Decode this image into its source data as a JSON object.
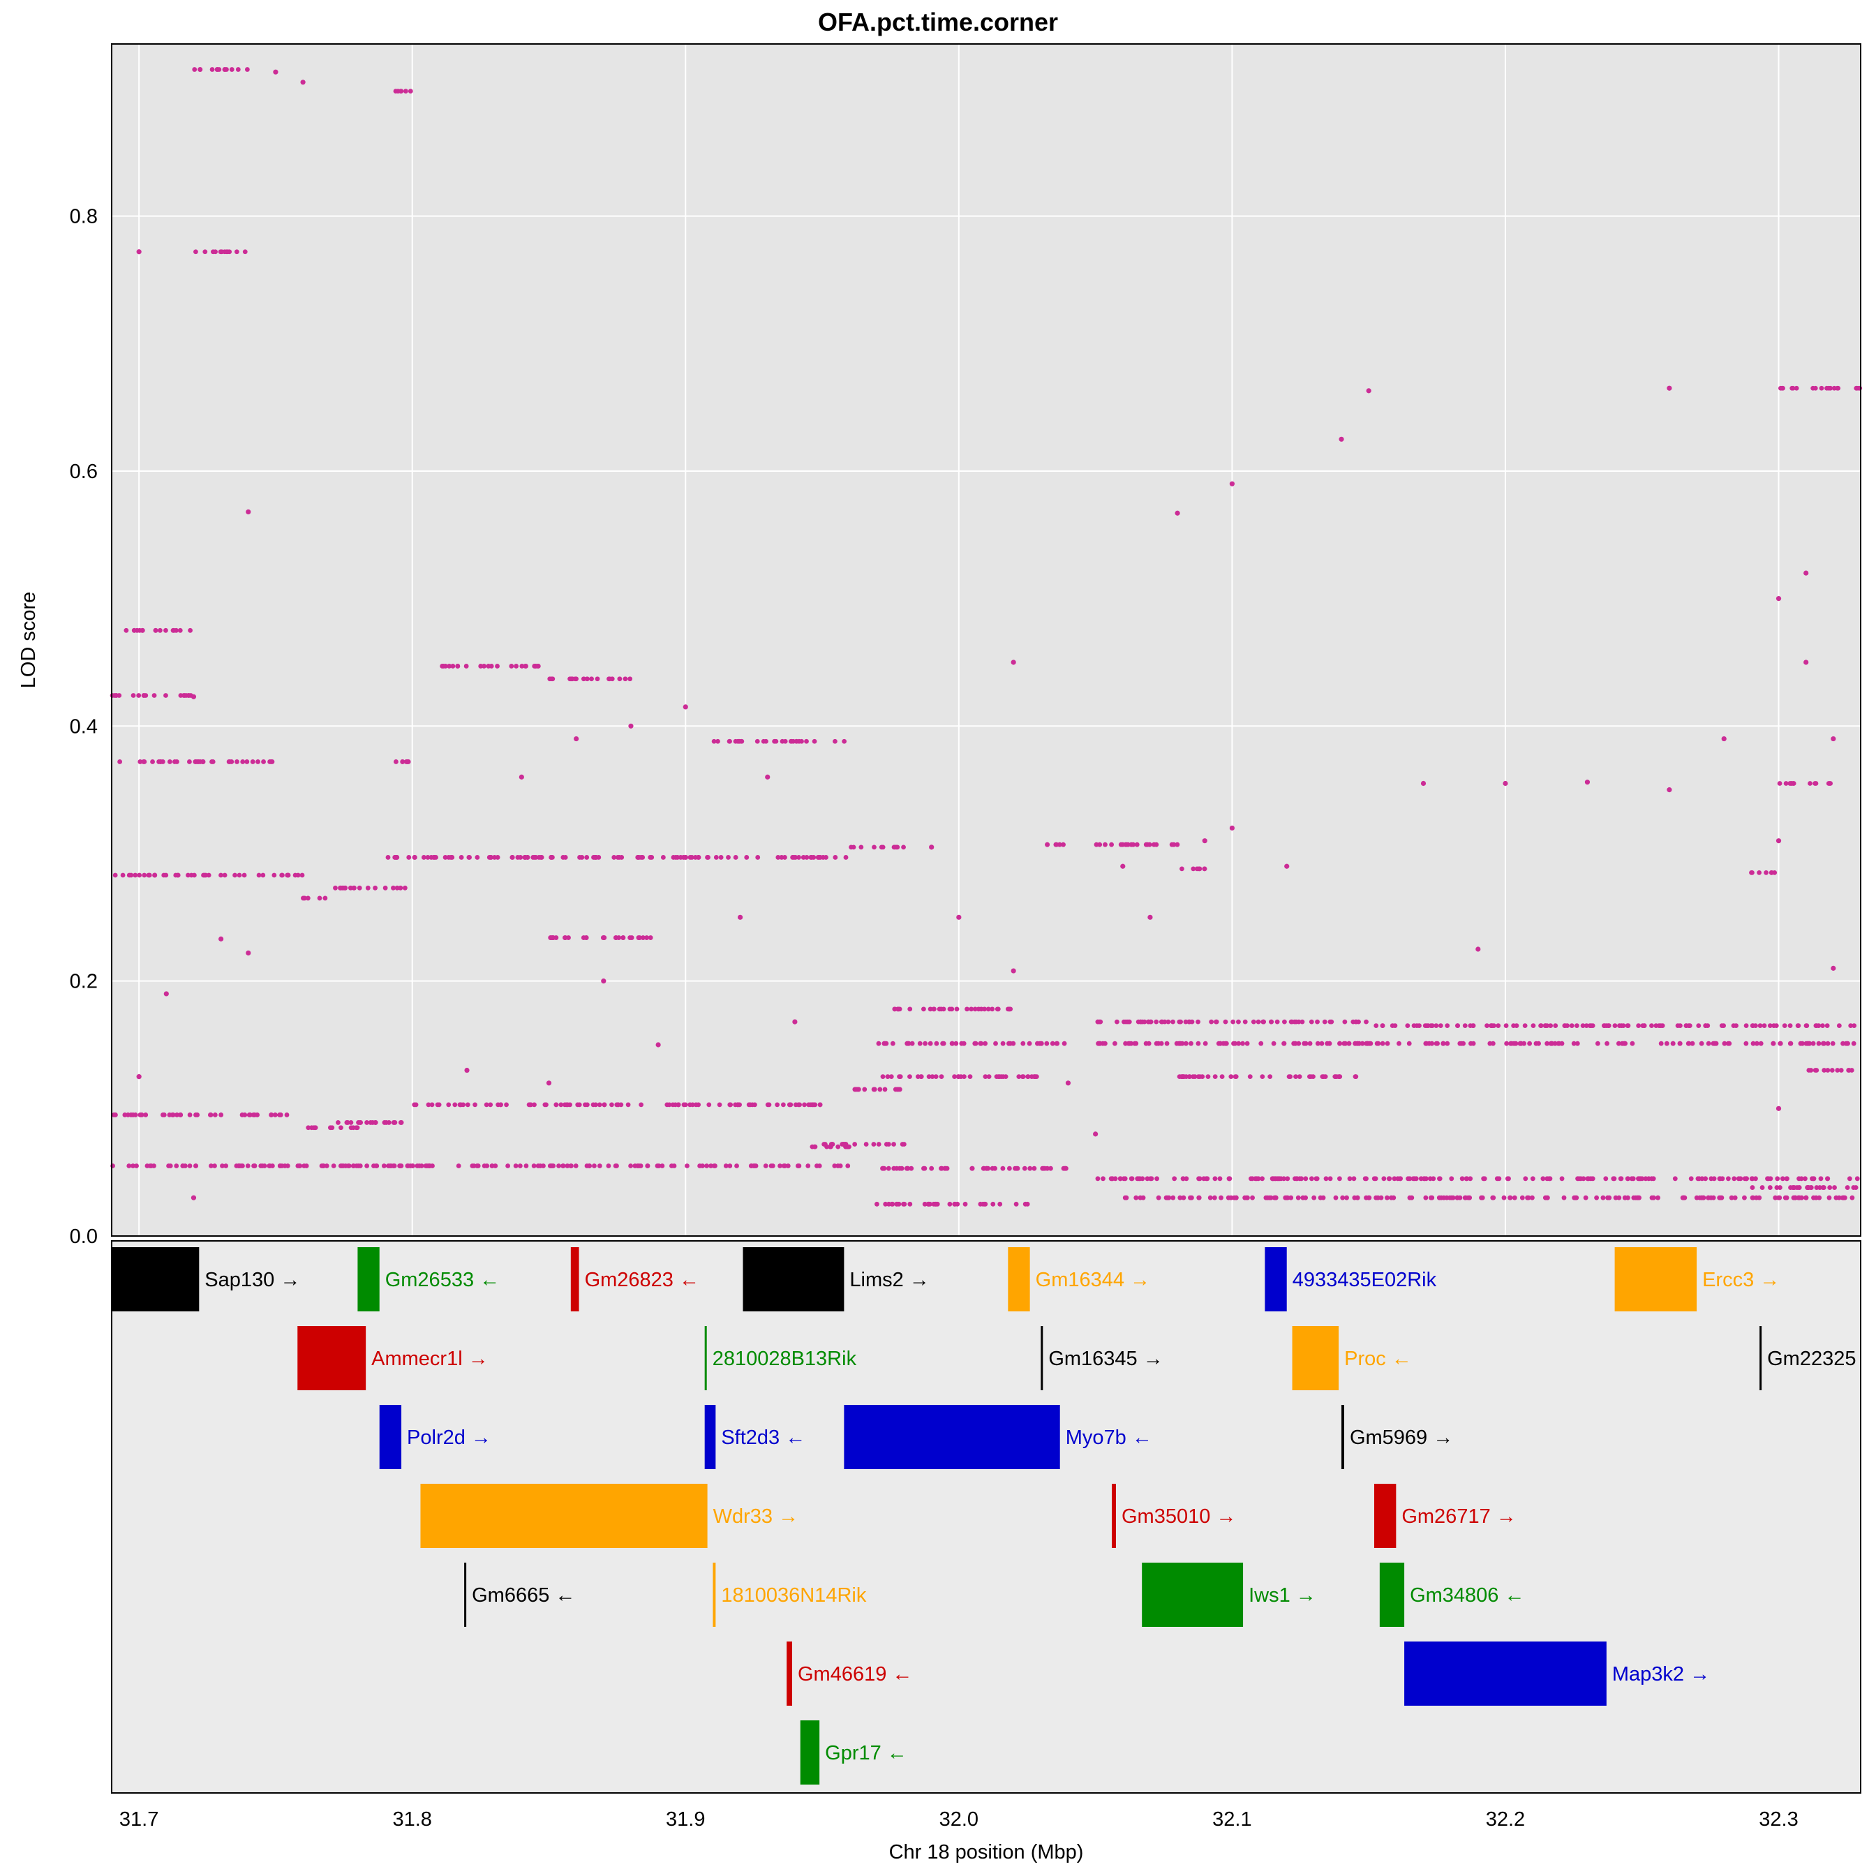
{
  "chart_data": {
    "type": "scatter",
    "title": "OFA.pct.time.corner",
    "xlabel": "Chr 18 position (Mbp)",
    "ylabel": "LOD score",
    "xlim": [
      31.69,
      32.33
    ],
    "ylim": [
      0,
      0.935
    ],
    "xticks": [
      31.7,
      31.8,
      31.9,
      32.0,
      32.1,
      32.2,
      32.3
    ],
    "xtick_labels": [
      "31.7",
      "31.8",
      "31.9",
      "32.0",
      "32.1",
      "32.2",
      "32.3"
    ],
    "yticks": [
      0,
      0.2,
      0.4,
      0.6,
      0.8
    ],
    "ytick_labels": [
      "0.0",
      "0.2",
      "0.4",
      "0.6",
      "0.8"
    ],
    "grid": true,
    "point_color": "#CC2C96",
    "series_bands": [
      {
        "x": [
          31.69,
          31.96
        ],
        "y": 0.055
      },
      {
        "x": [
          31.69,
          31.76
        ],
        "y": 0.095
      },
      {
        "x": [
          31.76,
          31.78
        ],
        "y": 0.085
      },
      {
        "x": [
          31.77,
          31.8
        ],
        "y": 0.089
      },
      {
        "x": [
          31.8,
          31.95
        ],
        "y": 0.103
      },
      {
        "x": [
          31.96,
          31.98
        ],
        "y": 0.115
      },
      {
        "x": [
          31.94,
          31.96
        ],
        "y": 0.07
      },
      {
        "x": [
          31.95,
          31.98
        ],
        "y": 0.072
      },
      {
        "x": [
          31.69,
          31.76
        ],
        "y": 0.283
      },
      {
        "x": [
          31.76,
          31.77
        ],
        "y": 0.265
      },
      {
        "x": [
          31.77,
          31.8
        ],
        "y": 0.273
      },
      {
        "x": [
          31.79,
          31.96
        ],
        "y": 0.297
      },
      {
        "x": [
          31.96,
          31.98
        ],
        "y": 0.305
      },
      {
        "x": [
          31.69,
          31.75
        ],
        "y": 0.372
      },
      {
        "x": [
          31.69,
          31.72
        ],
        "y": 0.424
      },
      {
        "x": [
          31.69,
          31.72
        ],
        "y": 0.475
      },
      {
        "x": [
          31.72,
          31.74
        ],
        "y": 0.915
      },
      {
        "x": [
          31.72,
          31.74
        ],
        "y": 0.772
      },
      {
        "x": [
          31.81,
          31.85
        ],
        "y": 0.447
      },
      {
        "x": [
          31.85,
          31.88
        ],
        "y": 0.437
      },
      {
        "x": [
          31.85,
          31.89
        ],
        "y": 0.234
      },
      {
        "x": [
          31.91,
          31.96
        ],
        "y": 0.388
      },
      {
        "x": [
          31.79,
          31.8
        ],
        "y": 0.898
      },
      {
        "x": [
          31.79,
          31.8
        ],
        "y": 0.372
      },
      {
        "x": [
          31.97,
          32.04
        ],
        "y": 0.151
      },
      {
        "x": [
          32.05,
          32.33
        ],
        "y": 0.151
      },
      {
        "x": [
          31.97,
          32.0
        ],
        "y": 0.178
      },
      {
        "x": [
          32.0,
          32.02
        ],
        "y": 0.178
      },
      {
        "x": [
          31.97,
          32.03
        ],
        "y": 0.125
      },
      {
        "x": [
          32.08,
          32.15
        ],
        "y": 0.125
      },
      {
        "x": [
          32.05,
          32.15
        ],
        "y": 0.168
      },
      {
        "x": [
          32.15,
          32.33
        ],
        "y": 0.165
      },
      {
        "x": [
          31.97,
          32.04
        ],
        "y": 0.053
      },
      {
        "x": [
          31.97,
          32.03
        ],
        "y": 0.025
      },
      {
        "x": [
          32.05,
          32.33
        ],
        "y": 0.045
      },
      {
        "x": [
          32.06,
          32.33
        ],
        "y": 0.03
      },
      {
        "x": [
          32.29,
          32.33
        ],
        "y": 0.038
      },
      {
        "x": [
          32.03,
          32.04
        ],
        "y": 0.307
      },
      {
        "x": [
          32.05,
          32.08
        ],
        "y": 0.307
      },
      {
        "x": [
          32.08,
          32.09
        ],
        "y": 0.288
      },
      {
        "x": [
          32.3,
          32.33
        ],
        "y": 0.665
      },
      {
        "x": [
          32.3,
          32.32
        ],
        "y": 0.355
      },
      {
        "x": [
          32.29,
          32.3
        ],
        "y": 0.285
      },
      {
        "x": [
          32.31,
          32.33
        ],
        "y": 0.13
      }
    ],
    "series_points": [
      [
        31.72,
        0.423
      ],
      [
        31.7,
        0.772
      ],
      [
        31.75,
        0.913
      ],
      [
        31.76,
        0.905
      ],
      [
        31.74,
        0.568
      ],
      [
        31.73,
        0.233
      ],
      [
        31.74,
        0.222
      ],
      [
        31.71,
        0.19
      ],
      [
        31.7,
        0.125
      ],
      [
        31.72,
        0.03
      ],
      [
        31.84,
        0.36
      ],
      [
        31.82,
        0.13
      ],
      [
        31.86,
        0.39
      ],
      [
        31.87,
        0.2
      ],
      [
        31.85,
        0.12
      ],
      [
        31.88,
        0.4
      ],
      [
        31.9,
        0.415
      ],
      [
        31.89,
        0.15
      ],
      [
        31.92,
        0.25
      ],
      [
        31.93,
        0.36
      ],
      [
        31.94,
        0.168
      ],
      [
        31.99,
        0.305
      ],
      [
        32.02,
        0.45
      ],
      [
        32.0,
        0.25
      ],
      [
        32.02,
        0.208
      ],
      [
        32.04,
        0.12
      ],
      [
        32.08,
        0.567
      ],
      [
        32.1,
        0.59
      ],
      [
        32.14,
        0.625
      ],
      [
        32.15,
        0.663
      ],
      [
        32.26,
        0.665
      ],
      [
        32.17,
        0.355
      ],
      [
        32.2,
        0.355
      ],
      [
        32.23,
        0.356
      ],
      [
        32.26,
        0.35
      ],
      [
        32.28,
        0.39
      ],
      [
        32.19,
        0.225
      ],
      [
        32.1,
        0.32
      ],
      [
        32.09,
        0.31
      ],
      [
        32.12,
        0.29
      ],
      [
        32.31,
        0.52
      ],
      [
        32.3,
        0.5
      ],
      [
        32.31,
        0.45
      ],
      [
        32.32,
        0.39
      ],
      [
        32.32,
        0.21
      ],
      [
        32.3,
        0.31
      ],
      [
        32.3,
        0.1
      ],
      [
        32.07,
        0.25
      ],
      [
        32.06,
        0.29
      ],
      [
        32.05,
        0.08
      ]
    ],
    "gene_track": {
      "genes": [
        {
          "name": "Sap130",
          "label": "Sap130 →",
          "start": 31.69,
          "end": 31.722,
          "row": 0,
          "color": "#000000"
        },
        {
          "name": "Gm26533",
          "label": "Gm26533 ←",
          "start": 31.78,
          "end": 31.788,
          "row": 0,
          "color": "#008B00"
        },
        {
          "name": "Gm26823",
          "label": "Gm26823 ←",
          "start": 31.858,
          "end": 31.861,
          "row": 0,
          "color": "#CD0000"
        },
        {
          "name": "Lims2",
          "label": "Lims2 →",
          "start": 31.921,
          "end": 31.958,
          "row": 0,
          "color": "#000000"
        },
        {
          "name": "Gm16344",
          "label": "Gm16344 →",
          "start": 32.018,
          "end": 32.026,
          "row": 0,
          "color": "#FFA500"
        },
        {
          "name": "4933435E02Rik",
          "label": "4933435E02Rik",
          "start": 32.112,
          "end": 32.12,
          "row": 0,
          "color": "#0000CD"
        },
        {
          "name": "Ercc3",
          "label": "Ercc3 →",
          "start": 32.24,
          "end": 32.27,
          "row": 0,
          "color": "#FFA500"
        },
        {
          "name": "Ammecr1l",
          "label": "Ammecr1l →",
          "start": 31.758,
          "end": 31.783,
          "row": 1,
          "color": "#CD0000"
        },
        {
          "name": "2810028B13Rik",
          "label": "2810028B13Rik",
          "start": 31.907,
          "end": 31.9075,
          "row": 1,
          "color": "#008B00"
        },
        {
          "name": "Gm16345",
          "label": "Gm16345 →",
          "start": 32.03,
          "end": 32.0305,
          "row": 1,
          "color": "#000000"
        },
        {
          "name": "Proc",
          "label": "Proc ←",
          "start": 32.122,
          "end": 32.139,
          "row": 1,
          "color": "#FFA500"
        },
        {
          "name": "Gm22325",
          "label": "Gm22325",
          "start": 32.293,
          "end": 32.2935,
          "row": 1,
          "color": "#000000"
        },
        {
          "name": "Polr2d",
          "label": "Polr2d →",
          "start": 31.788,
          "end": 31.796,
          "row": 2,
          "color": "#0000CD"
        },
        {
          "name": "Sft2d3",
          "label": "Sft2d3 ←",
          "start": 31.907,
          "end": 31.911,
          "row": 2,
          "color": "#0000CD"
        },
        {
          "name": "Myo7b",
          "label": "Myo7b ←",
          "start": 31.958,
          "end": 32.037,
          "row": 2,
          "color": "#0000CD"
        },
        {
          "name": "Gm5969",
          "label": "Gm5969 →",
          "start": 32.14,
          "end": 32.141,
          "row": 2,
          "color": "#000000"
        },
        {
          "name": "Wdr33",
          "label": "Wdr33 →",
          "start": 31.803,
          "end": 31.908,
          "row": 3,
          "color": "#FFA500"
        },
        {
          "name": "Gm35010",
          "label": "Gm35010 →",
          "start": 32.056,
          "end": 32.0575,
          "row": 3,
          "color": "#CD0000"
        },
        {
          "name": "Gm26717",
          "label": "Gm26717 →",
          "start": 32.152,
          "end": 32.16,
          "row": 3,
          "color": "#CD0000"
        },
        {
          "name": "Gm6665",
          "label": "Gm6665 ←",
          "start": 31.819,
          "end": 31.8195,
          "row": 4,
          "color": "#000000"
        },
        {
          "name": "1810036N14Rik",
          "label": "1810036N14Rik",
          "start": 31.91,
          "end": 31.911,
          "row": 4,
          "color": "#FFA500"
        },
        {
          "name": "Iws1",
          "label": "Iws1 →",
          "start": 32.067,
          "end": 32.104,
          "row": 4,
          "color": "#008B00"
        },
        {
          "name": "Gm34806",
          "label": "Gm34806 ←",
          "start": 32.154,
          "end": 32.163,
          "row": 4,
          "color": "#008B00"
        },
        {
          "name": "Gm46619",
          "label": "Gm46619 ←",
          "start": 31.937,
          "end": 31.939,
          "row": 5,
          "color": "#CD0000"
        },
        {
          "name": "Map3k2",
          "label": "Map3k2 →",
          "start": 32.163,
          "end": 32.237,
          "row": 5,
          "color": "#0000CD"
        },
        {
          "name": "Gpr17",
          "label": "Gpr17 ←",
          "start": 31.942,
          "end": 31.949,
          "row": 6,
          "color": "#008B00"
        }
      ]
    }
  }
}
